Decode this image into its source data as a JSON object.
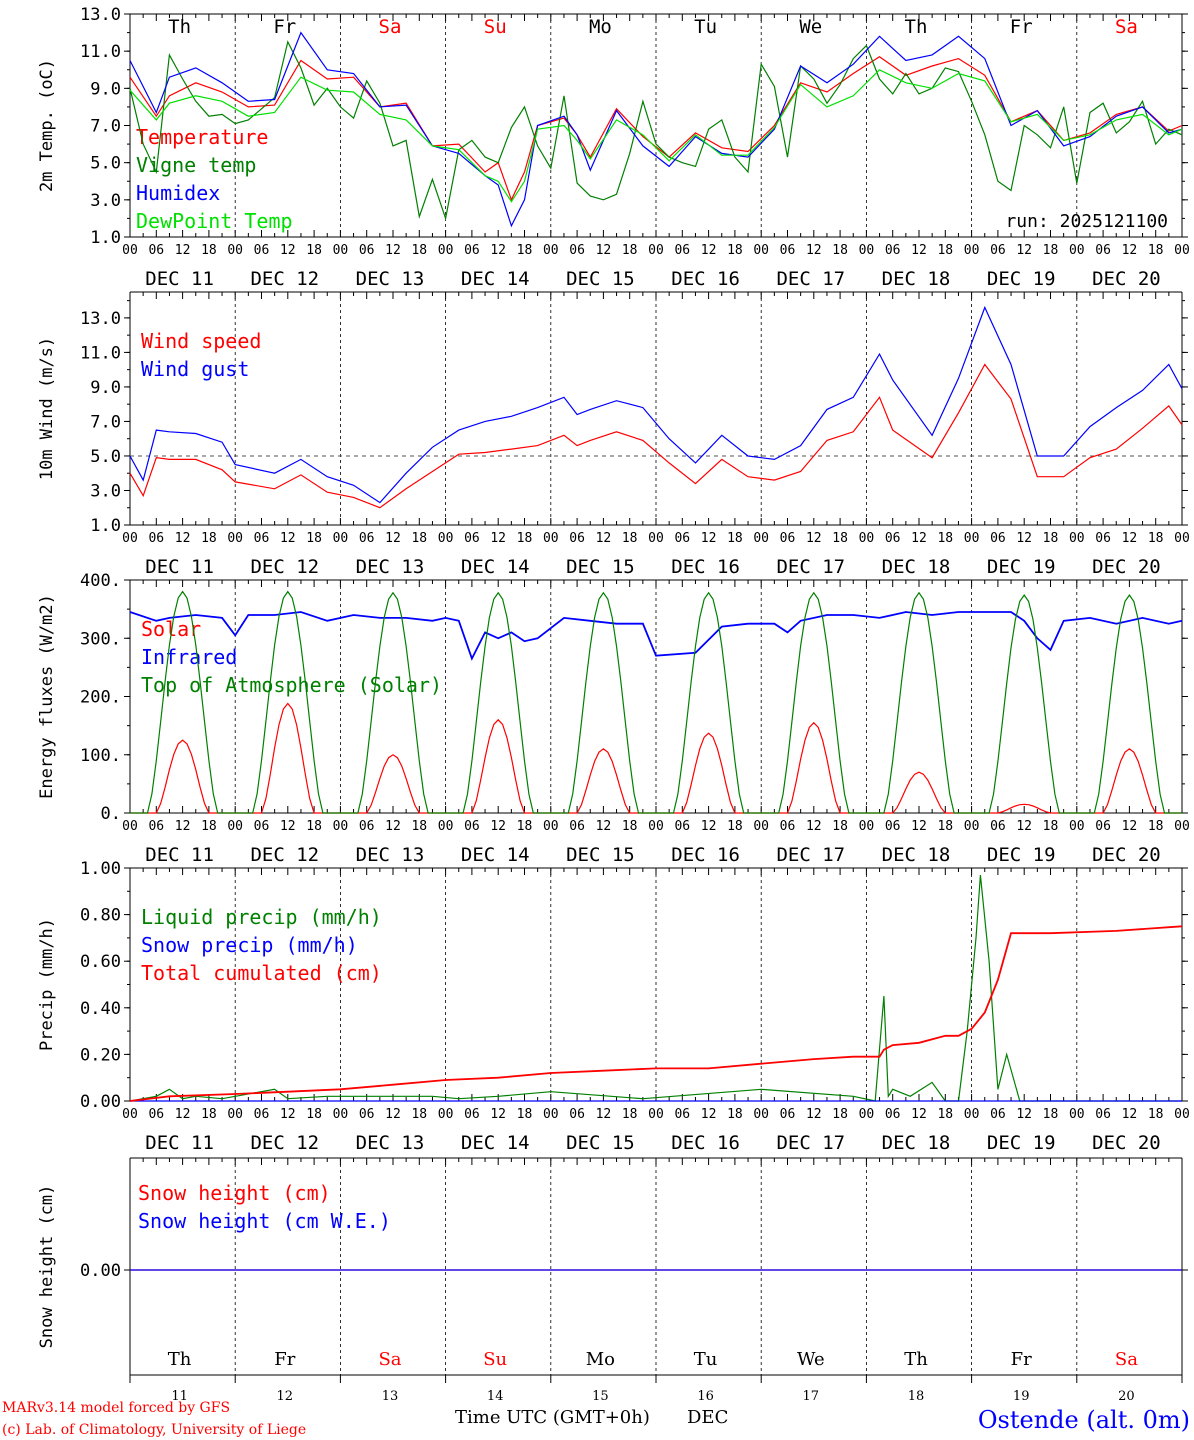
{
  "run_label": "run: 2025121100",
  "days": [
    "Th",
    "Fr",
    "Sa",
    "Su",
    "Mo",
    "Tu",
    "We",
    "Th",
    "Fr",
    "Sa"
  ],
  "weekend": [
    false,
    false,
    true,
    true,
    false,
    false,
    false,
    false,
    false,
    true
  ],
  "day_labels": [
    "DEC 11",
    "DEC 12",
    "DEC 13",
    "DEC 14",
    "DEC 15",
    "DEC 16",
    "DEC 17",
    "DEC 18",
    "DEC 19",
    "DEC 20"
  ],
  "day_numbers": [
    "11",
    "12",
    "13",
    "14",
    "15",
    "16",
    "17",
    "18",
    "19",
    "20"
  ],
  "hour_ticks": [
    "00",
    "06",
    "12",
    "18"
  ],
  "footer": {
    "model": "MARv3.14 model forced by GFS",
    "copyright": "(c) Lab. of Climatology, University of Liege",
    "xlabel": "Time UTC (GMT+0h)",
    "month": "DEC",
    "station": "Ostende (alt. 0m)"
  },
  "colors": {
    "red": "#ff0000",
    "green": "#008000",
    "blue": "#0000ff",
    "lightgreen": "#00e000"
  },
  "chart_data": [
    {
      "type": "line",
      "id": "temp",
      "ylabel": "2m Temp. (oC)",
      "ylim": [
        1,
        13
      ],
      "yticks": [
        "1.0",
        "3.0",
        "5.0",
        "7.0",
        "9.0",
        "11.0",
        "13.0"
      ],
      "x_unit": "hours since DEC 11 00 UTC",
      "series": [
        {
          "name": "Temperature",
          "color": "#ff0000",
          "x": [
            0,
            6,
            9,
            15,
            21,
            27,
            33,
            39,
            45,
            51,
            57,
            63,
            69,
            75,
            81,
            84,
            87,
            90,
            93,
            99,
            102,
            105,
            111,
            117,
            123,
            129,
            135,
            141,
            147,
            153,
            159,
            165,
            171,
            177,
            183,
            189,
            195,
            201,
            207,
            213,
            219,
            225,
            231,
            237,
            240
          ],
          "y": [
            9.6,
            7.5,
            8.6,
            9.3,
            8.8,
            8.0,
            8.1,
            10.5,
            9.5,
            9.6,
            8.0,
            8.2,
            5.9,
            6.0,
            4.5,
            5.0,
            3.0,
            4.5,
            7.0,
            7.4,
            6.5,
            5.3,
            7.9,
            6.4,
            5.3,
            6.6,
            5.8,
            5.6,
            7.0,
            9.3,
            8.8,
            9.8,
            10.7,
            9.7,
            10.2,
            10.6,
            9.7,
            7.2,
            7.8,
            6.2,
            6.6,
            7.6,
            8.0,
            6.7,
            7.0
          ]
        },
        {
          "name": "Vigne temp",
          "color": "#008000",
          "x": [
            0,
            3,
            6,
            9,
            12,
            15,
            18,
            21,
            24,
            27,
            30,
            33,
            36,
            39,
            42,
            45,
            48,
            51,
            54,
            57,
            60,
            63,
            66,
            69,
            72,
            75,
            78,
            81,
            84,
            87,
            90,
            93,
            96,
            99,
            102,
            105,
            108,
            111,
            114,
            117,
            120,
            123,
            126,
            129,
            132,
            135,
            138,
            141,
            144,
            147,
            150,
            153,
            156,
            159,
            162,
            165,
            168,
            171,
            174,
            177,
            180,
            183,
            186,
            189,
            192,
            195,
            198,
            201,
            204,
            207,
            210,
            213,
            216,
            219,
            222,
            225,
            228,
            231,
            234,
            237,
            240
          ],
          "y": [
            9.0,
            6.0,
            4.5,
            10.8,
            9.5,
            8.3,
            7.5,
            7.6,
            7.1,
            7.3,
            7.9,
            8.5,
            11.5,
            10.1,
            8.1,
            9.0,
            8.0,
            7.4,
            9.4,
            8.2,
            5.9,
            6.2,
            2.1,
            4.1,
            2.0,
            5.7,
            6.2,
            5.3,
            5.0,
            6.9,
            8.0,
            5.9,
            4.7,
            8.6,
            3.9,
            3.2,
            3.0,
            3.3,
            5.5,
            8.3,
            6.0,
            5.3,
            5.0,
            4.8,
            6.8,
            7.3,
            5.3,
            4.5,
            10.3,
            9.1,
            5.3,
            10.2,
            9.5,
            8.2,
            9.2,
            10.6,
            11.3,
            9.5,
            8.7,
            9.8,
            8.7,
            9.0,
            10.1,
            9.9,
            8.3,
            6.5,
            4.0,
            3.5,
            7.0,
            6.5,
            5.8,
            8.0,
            3.9,
            7.7,
            8.2,
            6.6,
            7.2,
            8.3,
            6.0,
            6.8,
            6.5
          ]
        },
        {
          "name": "Humidex",
          "color": "#0000ff",
          "x": [
            0,
            6,
            9,
            15,
            21,
            27,
            33,
            39,
            45,
            51,
            57,
            63,
            69,
            75,
            81,
            84,
            87,
            90,
            93,
            99,
            102,
            105,
            111,
            117,
            123,
            129,
            135,
            141,
            147,
            153,
            159,
            165,
            171,
            177,
            183,
            189,
            195,
            201,
            207,
            213,
            219,
            225,
            231,
            237,
            240
          ],
          "y": [
            10.5,
            7.7,
            9.6,
            10.1,
            9.3,
            8.3,
            8.4,
            12.0,
            10.0,
            9.8,
            8.0,
            8.1,
            5.9,
            5.5,
            4.3,
            3.8,
            1.6,
            3.0,
            7.0,
            7.5,
            6.5,
            4.6,
            7.8,
            5.9,
            4.8,
            6.4,
            5.5,
            5.3,
            6.8,
            10.2,
            9.3,
            10.3,
            11.8,
            10.5,
            10.8,
            11.8,
            10.6,
            7.0,
            7.8,
            5.9,
            6.4,
            7.5,
            8.0,
            6.6,
            6.8
          ]
        },
        {
          "name": "DewPoint Temp",
          "color": "#00e000",
          "x": [
            0,
            6,
            9,
            15,
            21,
            27,
            33,
            39,
            45,
            51,
            57,
            63,
            69,
            75,
            81,
            84,
            87,
            90,
            93,
            99,
            102,
            105,
            111,
            117,
            123,
            129,
            135,
            141,
            147,
            153,
            159,
            165,
            171,
            177,
            183,
            189,
            195,
            201,
            207,
            213,
            219,
            225,
            231,
            237,
            240
          ],
          "y": [
            8.9,
            7.3,
            8.2,
            8.6,
            8.3,
            7.5,
            7.7,
            9.6,
            8.9,
            8.8,
            7.6,
            7.3,
            5.9,
            5.7,
            4.3,
            4.0,
            2.9,
            4.0,
            6.8,
            7.0,
            6.2,
            5.2,
            7.3,
            6.5,
            5.1,
            6.5,
            5.4,
            5.4,
            6.9,
            9.2,
            8.0,
            8.6,
            10.0,
            9.3,
            9.0,
            9.8,
            9.4,
            7.2,
            7.6,
            6.2,
            6.5,
            7.3,
            7.6,
            6.5,
            6.8
          ]
        }
      ]
    },
    {
      "type": "line",
      "id": "wind",
      "ylabel": "10m Wind (m/s)",
      "ylim": [
        1,
        14.5
      ],
      "yticks": [
        "1.0",
        "3.0",
        "5.0",
        "7.0",
        "9.0",
        "11.0",
        "13.0"
      ],
      "reference_line": 5.0,
      "series": [
        {
          "name": "Wind speed",
          "color": "#ff0000",
          "x": [
            0,
            3,
            6,
            9,
            15,
            21,
            24,
            33,
            39,
            45,
            51,
            57,
            63,
            69,
            75,
            81,
            87,
            93,
            99,
            102,
            105,
            111,
            117,
            123,
            129,
            135,
            141,
            147,
            153,
            159,
            165,
            171,
            174,
            183,
            189,
            195,
            201,
            207,
            213,
            219,
            225,
            231,
            237,
            240
          ],
          "y": [
            4.0,
            2.7,
            4.9,
            4.8,
            4.8,
            4.2,
            3.5,
            3.1,
            3.9,
            2.9,
            2.6,
            2.0,
            3.1,
            4.1,
            5.1,
            5.2,
            5.4,
            5.6,
            6.2,
            5.6,
            5.9,
            6.4,
            5.9,
            4.6,
            3.4,
            4.8,
            3.8,
            3.6,
            4.1,
            5.9,
            6.4,
            8.4,
            6.5,
            4.9,
            7.5,
            10.3,
            8.3,
            3.8,
            3.8,
            4.9,
            5.4,
            6.6,
            7.9,
            6.8
          ]
        },
        {
          "name": "Wind gust",
          "color": "#0000ff",
          "x": [
            0,
            3,
            6,
            9,
            15,
            21,
            24,
            33,
            39,
            45,
            51,
            57,
            63,
            69,
            75,
            81,
            87,
            93,
            99,
            102,
            105,
            111,
            117,
            123,
            129,
            135,
            141,
            147,
            153,
            159,
            165,
            171,
            174,
            183,
            189,
            195,
            201,
            207,
            213,
            219,
            225,
            231,
            237,
            240
          ],
          "y": [
            5.0,
            3.6,
            6.5,
            6.4,
            6.3,
            5.8,
            4.5,
            4.0,
            4.8,
            3.8,
            3.3,
            2.3,
            4.0,
            5.5,
            6.5,
            7.0,
            7.3,
            7.8,
            8.4,
            7.4,
            7.7,
            8.2,
            7.8,
            6.0,
            4.6,
            6.2,
            5.0,
            4.8,
            5.6,
            7.7,
            8.4,
            10.9,
            9.4,
            6.2,
            9.5,
            13.6,
            10.3,
            5.0,
            5.0,
            6.7,
            7.8,
            8.8,
            10.3,
            8.9
          ]
        }
      ]
    },
    {
      "type": "line",
      "id": "energy",
      "ylabel": "Energy fluxes (W/m2)",
      "ylim": [
        0,
        400
      ],
      "yticks": [
        "0.",
        "100.",
        "200.",
        "300.",
        "400."
      ],
      "series": [
        {
          "name": "Solar",
          "color": "#ff0000",
          "peaks": [
            125,
            188,
            100,
            160,
            110,
            137,
            155,
            70,
            15,
            110
          ]
        },
        {
          "name": "Infrared",
          "color": "#0000ff",
          "x": [
            0,
            6,
            9,
            15,
            21,
            24,
            27,
            33,
            39,
            45,
            51,
            57,
            63,
            69,
            72,
            75,
            78,
            81,
            84,
            87,
            90,
            93,
            99,
            105,
            111,
            117,
            120,
            129,
            135,
            141,
            147,
            150,
            153,
            159,
            165,
            171,
            177,
            183,
            189,
            195,
            201,
            204,
            207,
            210,
            213,
            219,
            225,
            231,
            237,
            240
          ],
          "y": [
            345,
            330,
            335,
            340,
            335,
            305,
            340,
            340,
            345,
            330,
            340,
            335,
            335,
            330,
            335,
            330,
            265,
            310,
            300,
            310,
            295,
            300,
            335,
            330,
            325,
            325,
            270,
            275,
            320,
            325,
            325,
            310,
            330,
            340,
            340,
            335,
            345,
            340,
            345,
            345,
            345,
            330,
            300,
            280,
            330,
            335,
            325,
            335,
            325,
            330
          ]
        },
        {
          "name": "Top of Atmosphere (Solar)",
          "color": "#008000",
          "peaks": [
            380,
            380,
            378,
            378,
            378,
            378,
            378,
            378,
            374,
            374
          ]
        }
      ]
    },
    {
      "type": "line",
      "id": "precip",
      "ylabel": "Precip (mm/h)",
      "ylim": [
        0,
        1
      ],
      "yticks": [
        "0.00",
        "0.20",
        "0.40",
        "0.60",
        "0.80",
        "1.00"
      ],
      "series": [
        {
          "name": "Liquid precip (mm/h)",
          "color": "#008000",
          "x": [
            0,
            6,
            9,
            12,
            15,
            21,
            33,
            36,
            45,
            57,
            69,
            75,
            84,
            96,
            117,
            144,
            165,
            170,
            172,
            173,
            174,
            178,
            183,
            186,
            189,
            191,
            193,
            194,
            196,
            198,
            200,
            203,
            205,
            240
          ],
          "y": [
            0,
            0.02,
            0.05,
            0.01,
            0.02,
            0.01,
            0.05,
            0.01,
            0.02,
            0.02,
            0.02,
            0.01,
            0.02,
            0.04,
            0.01,
            0.05,
            0.02,
            0.0,
            0.45,
            0.02,
            0.05,
            0.02,
            0.08,
            0.0,
            0.0,
            0.3,
            0.7,
            0.97,
            0.6,
            0.05,
            0.2,
            0.0,
            0.0,
            0.0
          ]
        },
        {
          "name": "Snow precip (mm/h)",
          "color": "#0000ff",
          "x": [
            0,
            240
          ],
          "y": [
            0,
            0
          ]
        },
        {
          "name": "Total cumulated (cm)",
          "color": "#ff0000",
          "x": [
            0,
            9,
            24,
            36,
            48,
            60,
            72,
            84,
            96,
            108,
            120,
            132,
            144,
            156,
            165,
            171,
            172,
            174,
            180,
            186,
            189,
            192,
            195,
            198,
            201,
            210,
            225,
            240
          ],
          "y": [
            0,
            0.02,
            0.03,
            0.04,
            0.05,
            0.07,
            0.09,
            0.1,
            0.12,
            0.13,
            0.14,
            0.14,
            0.16,
            0.18,
            0.19,
            0.19,
            0.22,
            0.24,
            0.25,
            0.28,
            0.28,
            0.31,
            0.38,
            0.52,
            0.72,
            0.72,
            0.73,
            0.75
          ]
        }
      ]
    },
    {
      "type": "line",
      "id": "snow",
      "ylabel": "Snow height (cm)",
      "yticks": [
        "0.00"
      ],
      "series": [
        {
          "name": "Snow height (cm)",
          "color": "#ff0000",
          "x": [
            0,
            240
          ],
          "y": [
            0,
            0
          ]
        },
        {
          "name": "Snow height (cm W.E.)",
          "color": "#0000ff",
          "x": [
            0,
            240
          ],
          "y": [
            0,
            0
          ]
        }
      ]
    }
  ]
}
